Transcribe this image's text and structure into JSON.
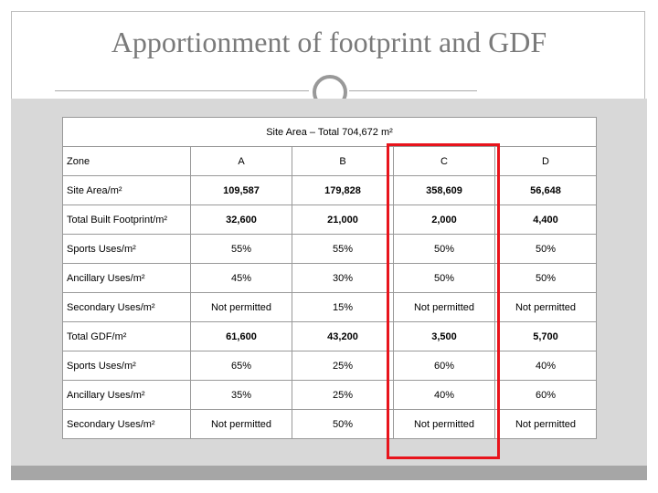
{
  "title": "Apportionment of footprint and GDF",
  "table": {
    "caption": "Site Area – Total 704,672 m²",
    "header": [
      "Zone",
      "A",
      "B",
      "C",
      "D"
    ],
    "rows": [
      [
        "Site Area/m²",
        "109,587",
        "179,828",
        "358,609",
        "56,648"
      ],
      [
        "Total Built Footprint/m²",
        "32,600",
        "21,000",
        "2,000",
        "4,400"
      ],
      [
        "Sports Uses/m²",
        "55%",
        "55%",
        "50%",
        "50%"
      ],
      [
        "Ancillary Uses/m²",
        "45%",
        "30%",
        "50%",
        "50%"
      ],
      [
        "Secondary Uses/m²",
        "Not permitted",
        "15%",
        "Not permitted",
        "Not permitted"
      ],
      [
        "Total GDF/m²",
        "61,600",
        "43,200",
        "3,500",
        "5,700"
      ],
      [
        "Sports Uses/m²",
        "65%",
        "25%",
        "60%",
        "40%"
      ],
      [
        "Ancillary Uses/m²",
        "35%",
        "25%",
        "40%",
        "60%"
      ],
      [
        "Secondary Uses/m²",
        "Not permitted",
        "50%",
        "Not permitted",
        "Not permitted"
      ]
    ]
  }
}
